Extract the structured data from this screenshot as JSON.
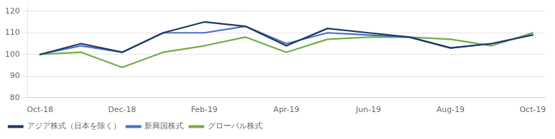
{
  "chart_data": {
    "type": "line",
    "x": [
      0,
      1,
      2,
      3,
      4,
      5,
      6,
      7,
      8,
      9,
      10,
      11,
      12
    ],
    "xlim": [
      -0.3,
      12.3
    ],
    "xticks": [
      {
        "value": 0,
        "label": "Oct-18"
      },
      {
        "value": 2,
        "label": "Dec-18"
      },
      {
        "value": 4,
        "label": "Feb-19"
      },
      {
        "value": 6,
        "label": "Apr-19"
      },
      {
        "value": 8,
        "label": "Jun-19"
      },
      {
        "value": 10,
        "label": "Aug-19"
      },
      {
        "value": 12,
        "label": "Oct-19"
      }
    ],
    "ylim": [
      80,
      122
    ],
    "yticks": [
      80,
      90,
      100,
      110,
      120
    ],
    "grid": "y",
    "legend": "lower left",
    "series": [
      {
        "name": "アジア株式（日本を除く）",
        "color": "#1f3864",
        "values": [
          100,
          105,
          101,
          110,
          115,
          113,
          104,
          112,
          110,
          108,
          103,
          105,
          109
        ]
      },
      {
        "name": "新興国株式",
        "color": "#4472c4",
        "values": [
          100,
          104,
          101,
          110,
          110,
          113,
          105,
          110,
          109,
          108,
          103,
          105,
          109
        ]
      },
      {
        "name": "グローバル株式",
        "color": "#70ad47",
        "values": [
          100,
          101,
          94,
          101,
          104,
          108,
          101,
          107,
          108,
          108,
          107,
          104,
          110
        ]
      }
    ]
  }
}
